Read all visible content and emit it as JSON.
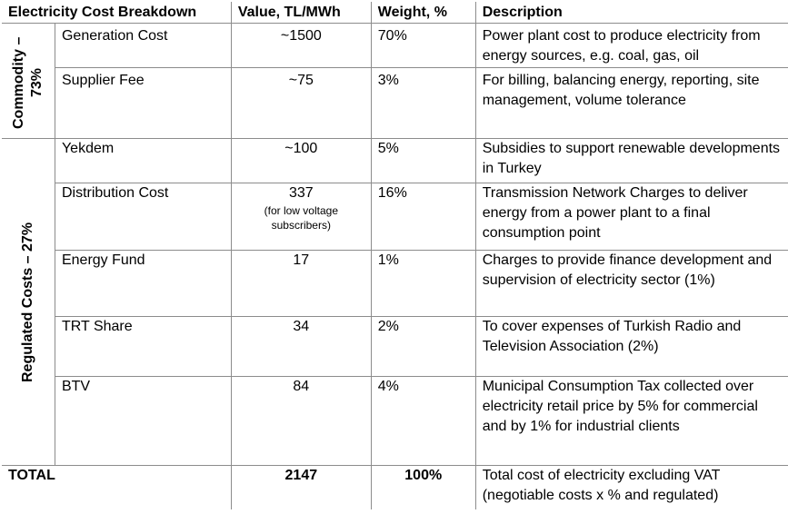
{
  "header": {
    "col1": "Electricity Cost Breakdown",
    "col2": "Value, TL/MWh",
    "col3": "Weight, %",
    "col4": "Description"
  },
  "groups": {
    "commodity": "Commodity – 73%",
    "regulated": "Regulated Costs – 27%"
  },
  "rows": [
    {
      "name": "Generation Cost",
      "value": "~1500",
      "weight": "70%",
      "description": "Power plant cost to produce electricity from energy sources, e.g. coal, gas, oil"
    },
    {
      "name": "Supplier Fee",
      "value": "~75",
      "weight": "3%",
      "description": "For billing, balancing energy, reporting, site management, volume tolerance"
    },
    {
      "name": "Yekdem",
      "value": "~100",
      "weight": "5%",
      "description": "Subsidies to support renewable developments in Turkey"
    },
    {
      "name": "Distribution Cost",
      "value": "337",
      "value_note": "(for low voltage subscribers)",
      "weight": "16%",
      "description": "Transmission Network Charges to deliver energy from a power plant to a final consumption point"
    },
    {
      "name": "Energy Fund",
      "value": "17",
      "weight": "1%",
      "description": "Charges to provide finance development and supervision of electricity sector (1%)"
    },
    {
      "name": "TRT Share",
      "value": "34",
      "weight": "2%",
      "description": "To cover expenses of Turkish Radio and Television Association (2%)"
    },
    {
      "name": "BTV",
      "value": "84",
      "weight": "4%",
      "description": "Municipal Consumption Tax collected over electricity retail price by 5% for commercial and by 1% for industrial clients"
    }
  ],
  "total": {
    "label": "TOTAL",
    "value": "2147",
    "weight": "100%",
    "description": "Total cost of electricity excluding VAT (negotiable costs x % and regulated)"
  }
}
